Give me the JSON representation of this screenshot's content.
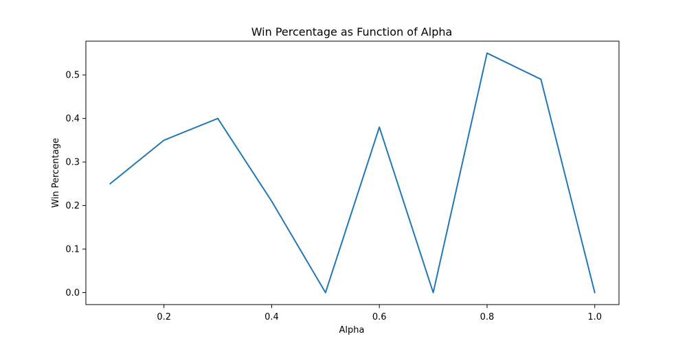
{
  "chart_data": {
    "type": "line",
    "title": "Win Percentage as Function of Alpha",
    "xlabel": "Alpha",
    "ylabel": "Win Percentage",
    "x": [
      0.1,
      0.2,
      0.3,
      0.4,
      0.5,
      0.6,
      0.7,
      0.8,
      0.9,
      1.0
    ],
    "series": [
      {
        "values": [
          0.25,
          0.35,
          0.4,
          0.21,
          0.0,
          0.38,
          0.0,
          0.55,
          0.49,
          0.0
        ],
        "color": "#1f77b4"
      }
    ],
    "xlim": [
      0.055,
      1.045
    ],
    "ylim": [
      -0.0275,
      0.5775
    ],
    "xticks": [
      0.2,
      0.4,
      0.6,
      0.8,
      1.0
    ],
    "xtick_labels": [
      "0.2",
      "0.4",
      "0.6",
      "0.8",
      "1.0"
    ],
    "yticks": [
      0.0,
      0.1,
      0.2,
      0.3,
      0.4,
      0.5
    ],
    "ytick_labels": [
      "0.0",
      "0.1",
      "0.2",
      "0.3",
      "0.4",
      "0.5"
    ],
    "grid": false,
    "legend": false
  }
}
